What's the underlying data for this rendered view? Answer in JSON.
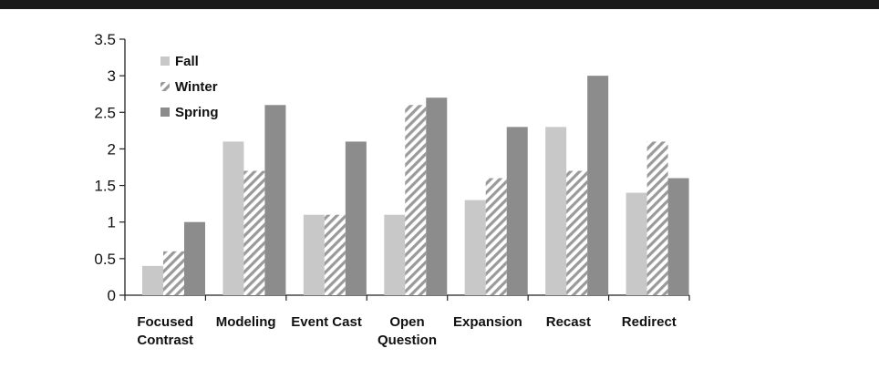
{
  "chart_data": {
    "type": "bar",
    "title": "",
    "xlabel": "",
    "ylabel": "",
    "ylim": [
      0,
      3.5
    ],
    "yticks": [
      "0",
      "0.5",
      "1",
      "1.5",
      "2",
      "2.5",
      "3",
      "3.5"
    ],
    "grid": false,
    "legend_position": "top-left",
    "categories": [
      [
        "Focused",
        "Contrast"
      ],
      [
        "Modeling"
      ],
      [
        "Event Cast"
      ],
      [
        "Open",
        "Question"
      ],
      [
        "Expansion"
      ],
      [
        "Recast"
      ],
      [
        "Redirect"
      ]
    ],
    "series": [
      {
        "name": "Fall",
        "values": [
          0.4,
          2.1,
          1.1,
          1.1,
          1.3,
          2.3,
          1.4
        ],
        "color": "#c8c8c8",
        "pattern": "solid"
      },
      {
        "name": "Winter",
        "values": [
          0.6,
          1.7,
          1.1,
          2.6,
          1.6,
          1.7,
          2.1
        ],
        "color": "#a0a0a0",
        "pattern": "diagonal-hatch"
      },
      {
        "name": "Spring",
        "values": [
          1.0,
          2.6,
          2.1,
          2.7,
          2.3,
          3.0,
          1.6
        ],
        "color": "#8c8c8c",
        "pattern": "solid"
      }
    ]
  }
}
